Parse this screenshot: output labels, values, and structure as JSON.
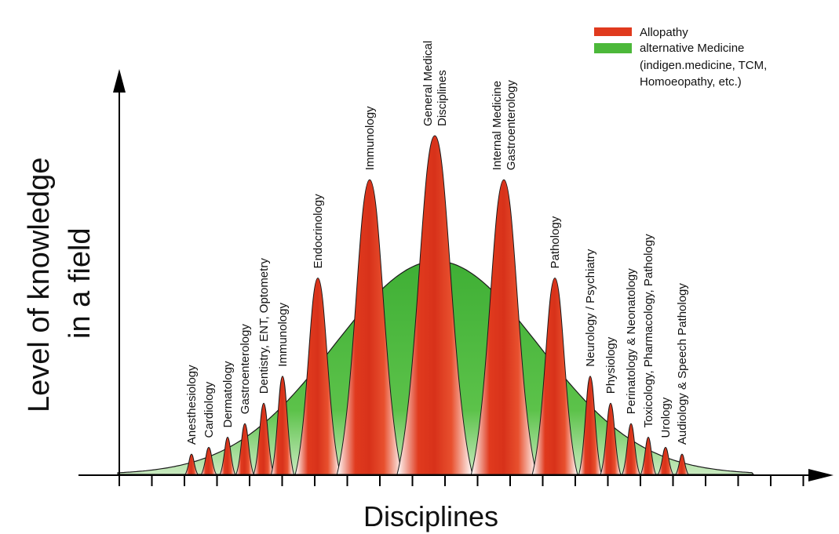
{
  "axes": {
    "y_title_line1": "Level of knowledge",
    "y_title_line2": "in a field",
    "x_title": "Disciplines"
  },
  "legend": {
    "allopathy": "Allopathy",
    "alt_line1": "alternative Medicine",
    "alt_line2": "(indigen.medicine, TCM,",
    "alt_line3": "Homoeopathy, etc.)"
  },
  "colors": {
    "allopathy": "#e03a1e",
    "alternative": "#4cb83a",
    "axis": "#000000"
  },
  "peaks": [
    {
      "lines": [
        "Anesthesiology"
      ],
      "level": 0.06
    },
    {
      "lines": [
        "Cardiology"
      ],
      "level": 0.08
    },
    {
      "lines": [
        "Dermatology"
      ],
      "level": 0.11
    },
    {
      "lines": [
        "Gastroenterology"
      ],
      "level": 0.15
    },
    {
      "lines": [
        "Dentistry, ENT, Optometry"
      ],
      "level": 0.21
    },
    {
      "lines": [
        "Immunology"
      ],
      "level": 0.29
    },
    {
      "lines": [
        "Endocrinology"
      ],
      "level": 0.58
    },
    {
      "lines": [
        "Immunology"
      ],
      "level": 0.87
    },
    {
      "lines": [
        "General Medical",
        "Disciplines"
      ],
      "level": 1.0
    },
    {
      "lines": [
        "Internal Medicine",
        "Gastroenterology"
      ],
      "level": 0.87
    },
    {
      "lines": [
        "Pathology"
      ],
      "level": 0.58
    },
    {
      "lines": [
        "Neurology / Psychiatry"
      ],
      "level": 0.29
    },
    {
      "lines": [
        "Physiology"
      ],
      "level": 0.21
    },
    {
      "lines": [
        "Perinatology & Neonatology"
      ],
      "level": 0.15
    },
    {
      "lines": [
        "Toxicology, Pharmacology, Pathology"
      ],
      "level": 0.11
    },
    {
      "lines": [
        "Urology"
      ],
      "level": 0.08
    },
    {
      "lines": [
        "Audiology & Speech Pathology"
      ],
      "level": 0.06
    }
  ],
  "alternative_curve": {
    "level": 0.63
  }
}
